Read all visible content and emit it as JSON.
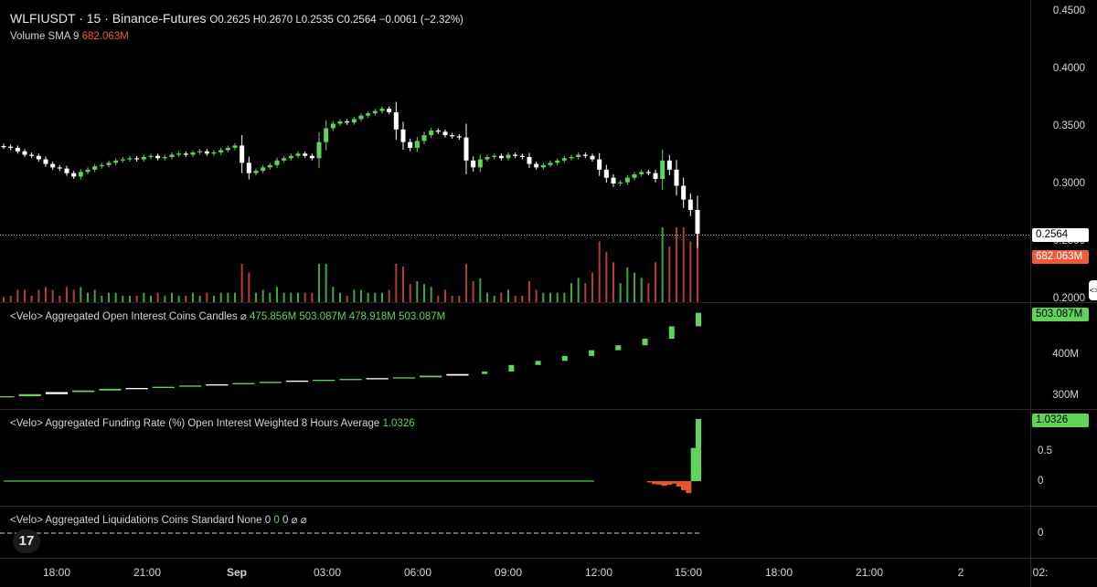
{
  "header": {
    "symbol": "WLFIUSDT · 15 · Binance-Futures",
    "ohlc": "O0.2625  H0.2670  L0.2535  C0.2564  −0.0061 (−2.32%)",
    "volume_label": "Volume SMA 9",
    "volume_value": "682.063M"
  },
  "panes": {
    "oi": {
      "label": "<Velo> Aggregated Open Interest Coins Candles ⌀",
      "values": "475.856M  503.087M  478.918M  503.087M"
    },
    "funding": {
      "label": "<Velo> Aggregated Funding Rate (%) Open Interest Weighted 8 Hours Average",
      "value": "1.0326"
    },
    "liq": {
      "label": "<Velo> Aggregated Liquidations Coins Standard None 0",
      "v1": "0",
      "v2": "0",
      "tail": "⌀ ⌀"
    }
  },
  "price_axis": {
    "ticks": [
      "0.4500",
      "0.4000",
      "0.3500",
      "0.3000",
      "0.2500",
      "0.2000"
    ],
    "last_price": "0.2564",
    "volume_tag": "682.063M"
  },
  "oi_axis": {
    "ticks": [
      "400M",
      "300M"
    ],
    "tag": "503.087M"
  },
  "funding_axis": {
    "ticks": [
      "0.5",
      "0"
    ],
    "tag": "1.0326"
  },
  "liq_axis": {
    "ticks": [
      "0"
    ]
  },
  "time_axis": {
    "labels": [
      "18:00",
      "21:00",
      "Sep",
      "03:00",
      "06:00",
      "09:00",
      "12:00",
      "15:00",
      "18:00",
      "21:00",
      "2",
      "02:"
    ]
  },
  "chart_data": {
    "type": "candlestick",
    "price_closes": [
      0.332,
      0.331,
      0.328,
      0.325,
      0.324,
      0.321,
      0.317,
      0.314,
      0.313,
      0.309,
      0.306,
      0.31,
      0.312,
      0.315,
      0.316,
      0.318,
      0.32,
      0.321,
      0.322,
      0.321,
      0.323,
      0.324,
      0.322,
      0.323,
      0.325,
      0.326,
      0.325,
      0.327,
      0.328,
      0.326,
      0.327,
      0.329,
      0.331,
      0.333,
      0.318,
      0.309,
      0.311,
      0.314,
      0.316,
      0.32,
      0.322,
      0.324,
      0.326,
      0.324,
      0.322,
      0.336,
      0.348,
      0.352,
      0.354,
      0.353,
      0.356,
      0.359,
      0.361,
      0.363,
      0.365,
      0.362,
      0.347,
      0.336,
      0.331,
      0.337,
      0.342,
      0.346,
      0.345,
      0.342,
      0.341,
      0.34,
      0.32,
      0.314,
      0.321,
      0.323,
      0.324,
      0.322,
      0.325,
      0.324,
      0.323,
      0.317,
      0.314,
      0.316,
      0.318,
      0.32,
      0.322,
      0.323,
      0.325,
      0.324,
      0.321,
      0.312,
      0.305,
      0.3,
      0.301,
      0.305,
      0.308,
      0.31,
      0.309,
      0.304,
      0.32,
      0.312,
      0.298,
      0.286,
      0.277,
      0.2564
    ],
    "oi_values_M": [
      300,
      305,
      310,
      314,
      318,
      320,
      323,
      326,
      329,
      332,
      335,
      338,
      340,
      342,
      344,
      346,
      350,
      354,
      360,
      376,
      386,
      398,
      412,
      424,
      440,
      470,
      503.087
    ],
    "funding_values": [
      0,
      0,
      0,
      0,
      0,
      0,
      0,
      0,
      0,
      0,
      0,
      -0.02,
      -0.05,
      -0.06,
      -0.08,
      -0.06,
      -0.04,
      -0.09,
      -0.15,
      -0.2,
      0.55,
      1.0326
    ],
    "liquidations": [
      0,
      0,
      0
    ]
  },
  "colors": {
    "up": "#5fd35a",
    "down": "#ffffff",
    "vol_up": "#3fa83a",
    "vol_down": "#b5402a",
    "funding_neg": "#e8542e",
    "tag_price": "#ffffff",
    "tag_vol": "#f05a3a",
    "tag_green": "#5fd35a"
  }
}
